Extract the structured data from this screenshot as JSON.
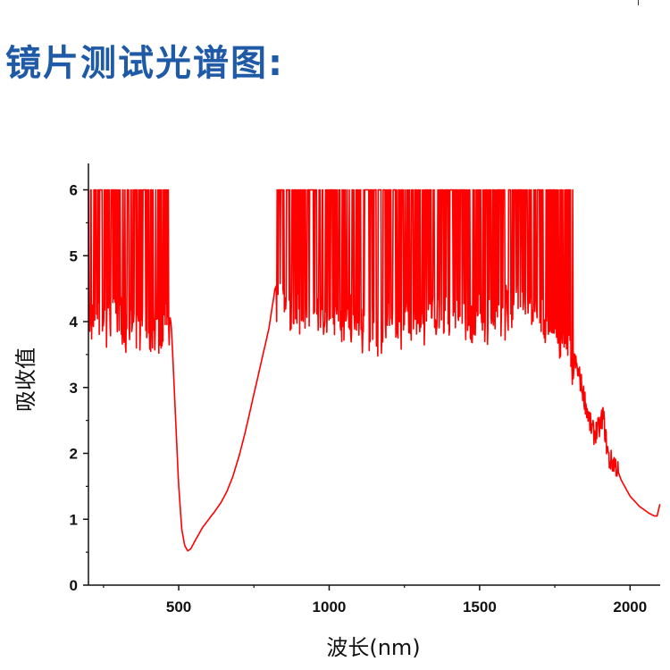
{
  "title": "镜片测试光谱图:",
  "chart_data": {
    "type": "line",
    "xlabel": "波长(nm)",
    "ylabel": "吸收值",
    "xlim": [
      200,
      2100
    ],
    "ylim": [
      0,
      6.4
    ],
    "x_ticks": [
      500,
      1000,
      1500,
      2000
    ],
    "y_ticks": [
      0,
      1,
      2,
      3,
      4,
      5,
      6
    ],
    "grid": false,
    "series": [
      {
        "color": "#ff0000",
        "x": [
          200,
          230,
          260,
          290,
          320,
          350,
          380,
          410,
          440,
          470,
          475,
          480,
          490,
          500,
          510,
          520,
          530,
          540,
          560,
          580,
          600,
          620,
          640,
          660,
          680,
          700,
          720,
          740,
          760,
          780,
          800,
          810,
          820,
          830,
          860,
          900,
          950,
          1000,
          1050,
          1100,
          1150,
          1200,
          1250,
          1300,
          1350,
          1400,
          1450,
          1500,
          1550,
          1600,
          1650,
          1700,
          1750,
          1800,
          1815,
          1830,
          1850,
          1870,
          1880,
          1900,
          1910,
          1920,
          1930,
          1950,
          1970,
          2000,
          2030,
          2060,
          2080,
          2090,
          2095,
          2100
        ],
        "y": [
          4.1,
          4.2,
          4.1,
          4.2,
          4.0,
          4.1,
          4.1,
          4.0,
          4.0,
          4.1,
          3.95,
          3.5,
          2.5,
          1.5,
          0.85,
          0.6,
          0.52,
          0.55,
          0.72,
          0.88,
          1.0,
          1.12,
          1.25,
          1.42,
          1.65,
          1.95,
          2.3,
          2.7,
          3.1,
          3.5,
          3.9,
          4.2,
          4.5,
          4.6,
          4.4,
          4.3,
          4.2,
          4.2,
          4.1,
          4.1,
          4.0,
          4.1,
          4.1,
          4.1,
          4.2,
          4.1,
          4.1,
          4.2,
          4.2,
          4.3,
          4.5,
          4.2,
          4.0,
          3.7,
          3.4,
          3.2,
          2.8,
          2.4,
          2.3,
          2.4,
          2.6,
          2.2,
          1.9,
          1.85,
          1.6,
          1.35,
          1.2,
          1.1,
          1.05,
          1.05,
          1.15,
          1.25
        ],
        "saturated_ranges": [
          [
            200,
            470
          ],
          [
            825,
            1815
          ]
        ],
        "saturation_value": 6
      }
    ]
  }
}
